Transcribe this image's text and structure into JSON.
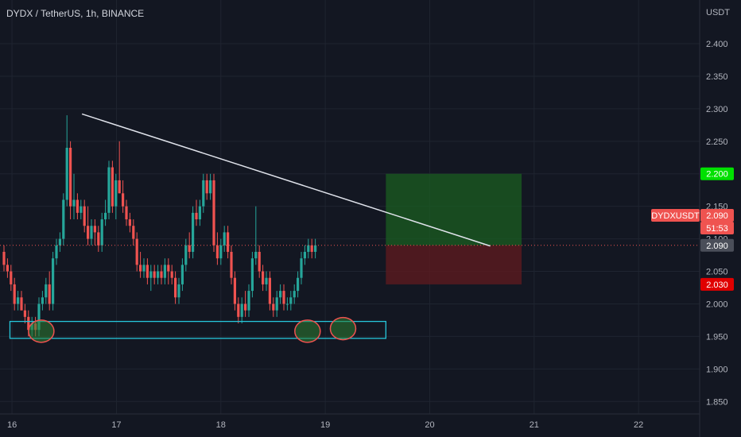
{
  "header": {
    "title": "DYDX / TetherUS, 1h, BINANCE"
  },
  "price_axis": {
    "unit": "USDT"
  },
  "tags": {
    "symbol": "DYDXUSDT",
    "symbol_price": "2.090",
    "countdown": "51:53",
    "last_price": "2.090",
    "target": "2.200",
    "stop": "2.030"
  },
  "colors": {
    "background": "#131722",
    "up": "#26a69a",
    "down": "#ef5350",
    "trendline": "#e0e3eb",
    "support_box": "#26c6da",
    "target_zone": "#1b5e20",
    "stop_zone": "#5d1a1f",
    "target_tag": "#00e000",
    "stop_tag": "#e00000",
    "symbol_tag": "#ef5350"
  },
  "chart_data": {
    "type": "candlestick",
    "title": "DYDX / TetherUS, 1h, BINANCE",
    "ylabel": "USDT",
    "ylim": [
      1.81,
      2.455
    ],
    "y_ticks": [
      "2.400",
      "2.350",
      "2.300",
      "2.250",
      "2.200",
      "2.150",
      "2.100",
      "2.050",
      "2.000",
      "1.950",
      "1.900",
      "1.850"
    ],
    "x_ticks": [
      "16",
      "17",
      "18",
      "19",
      "20",
      "21",
      "22"
    ],
    "x_tick_values": [
      16,
      17,
      18,
      19,
      20,
      21,
      22
    ],
    "xlim": [
      15.885,
      22.585
    ],
    "last_price": 2.09,
    "candles": [
      [
        2.08,
        2.09,
        2.05,
        2.06
      ],
      [
        2.06,
        2.07,
        2.04,
        2.05
      ],
      [
        2.05,
        2.06,
        2.02,
        2.03
      ],
      [
        2.03,
        2.04,
        1.99,
        2.0
      ],
      [
        2.0,
        2.02,
        1.99,
        2.01
      ],
      [
        2.01,
        2.02,
        1.99,
        1.99
      ],
      [
        1.99,
        2.0,
        1.97,
        1.98
      ],
      [
        1.98,
        1.99,
        1.95,
        1.96
      ],
      [
        1.96,
        1.98,
        1.95,
        1.97
      ],
      [
        1.97,
        1.98,
        1.95,
        1.96
      ],
      [
        1.96,
        2.01,
        1.95,
        2.0
      ],
      [
        2.0,
        2.02,
        1.99,
        2.01
      ],
      [
        2.01,
        2.04,
        2.0,
        2.03
      ],
      [
        2.03,
        2.05,
        1.99,
        2.0
      ],
      [
        2.0,
        2.08,
        1.99,
        2.07
      ],
      [
        2.07,
        2.1,
        2.06,
        2.09
      ],
      [
        2.09,
        2.11,
        2.08,
        2.1
      ],
      [
        2.1,
        2.17,
        2.09,
        2.16
      ],
      [
        2.16,
        2.29,
        2.15,
        2.24
      ],
      [
        2.24,
        2.25,
        2.13,
        2.15
      ],
      [
        2.15,
        2.2,
        2.13,
        2.16
      ],
      [
        2.16,
        2.17,
        2.13,
        2.14
      ],
      [
        2.14,
        2.16,
        2.13,
        2.15
      ],
      [
        2.15,
        2.16,
        2.11,
        2.12
      ],
      [
        2.12,
        2.15,
        2.09,
        2.1
      ],
      [
        2.1,
        2.13,
        2.09,
        2.12
      ],
      [
        2.12,
        2.13,
        2.09,
        2.11
      ],
      [
        2.11,
        2.12,
        2.08,
        2.09
      ],
      [
        2.09,
        2.14,
        2.08,
        2.13
      ],
      [
        2.13,
        2.16,
        2.12,
        2.14
      ],
      [
        2.14,
        2.22,
        2.13,
        2.21
      ],
      [
        2.21,
        2.22,
        2.14,
        2.15
      ],
      [
        2.15,
        2.2,
        2.13,
        2.19
      ],
      [
        2.19,
        2.25,
        2.17,
        2.17
      ],
      [
        2.17,
        2.19,
        2.14,
        2.15
      ],
      [
        2.15,
        2.16,
        2.12,
        2.13
      ],
      [
        2.13,
        2.14,
        2.11,
        2.12
      ],
      [
        2.12,
        2.13,
        2.09,
        2.1
      ],
      [
        2.1,
        2.11,
        2.05,
        2.06
      ],
      [
        2.06,
        2.08,
        2.04,
        2.05
      ],
      [
        2.05,
        2.07,
        2.04,
        2.06
      ],
      [
        2.06,
        2.07,
        2.03,
        2.04
      ],
      [
        2.04,
        2.06,
        2.02,
        2.05
      ],
      [
        2.05,
        2.06,
        2.03,
        2.04
      ],
      [
        2.04,
        2.06,
        2.03,
        2.05
      ],
      [
        2.05,
        2.06,
        2.03,
        2.04
      ],
      [
        2.04,
        2.07,
        2.03,
        2.06
      ],
      [
        2.06,
        2.07,
        2.03,
        2.05
      ],
      [
        2.05,
        2.06,
        2.03,
        2.04
      ],
      [
        2.04,
        2.05,
        2.0,
        2.01
      ],
      [
        2.01,
        2.04,
        2.0,
        2.03
      ],
      [
        2.03,
        2.07,
        2.02,
        2.06
      ],
      [
        2.06,
        2.1,
        2.05,
        2.09
      ],
      [
        2.09,
        2.11,
        2.07,
        2.08
      ],
      [
        2.08,
        2.15,
        2.07,
        2.14
      ],
      [
        2.14,
        2.16,
        2.12,
        2.13
      ],
      [
        2.13,
        2.16,
        2.12,
        2.15
      ],
      [
        2.15,
        2.2,
        2.14,
        2.19
      ],
      [
        2.19,
        2.2,
        2.16,
        2.17
      ],
      [
        2.17,
        2.2,
        2.16,
        2.19
      ],
      [
        2.19,
        2.2,
        2.08,
        2.09
      ],
      [
        2.09,
        2.11,
        2.06,
        2.07
      ],
      [
        2.07,
        2.1,
        2.06,
        2.09
      ],
      [
        2.09,
        2.12,
        2.08,
        2.11
      ],
      [
        2.11,
        2.12,
        2.07,
        2.08
      ],
      [
        2.08,
        2.09,
        2.03,
        2.04
      ],
      [
        2.04,
        2.05,
        1.99,
        2.0
      ],
      [
        2.0,
        2.01,
        1.97,
        1.98
      ],
      [
        1.98,
        2.01,
        1.97,
        2.0
      ],
      [
        2.0,
        2.02,
        1.98,
        1.99
      ],
      [
        1.99,
        2.03,
        1.98,
        2.02
      ],
      [
        2.02,
        2.08,
        2.01,
        2.07
      ],
      [
        2.07,
        2.15,
        2.06,
        2.08
      ],
      [
        2.08,
        2.09,
        2.04,
        2.05
      ],
      [
        2.05,
        2.06,
        2.02,
        2.03
      ],
      [
        2.03,
        2.05,
        2.02,
        2.04
      ],
      [
        2.04,
        2.05,
        1.99,
        2.0
      ],
      [
        2.0,
        2.01,
        1.98,
        1.99
      ],
      [
        1.99,
        2.02,
        1.98,
        2.01
      ],
      [
        2.01,
        2.03,
        2.0,
        2.02
      ],
      [
        2.02,
        2.03,
        1.99,
        2.0
      ],
      [
        2.0,
        2.01,
        1.99,
        2.0
      ],
      [
        2.0,
        2.02,
        1.99,
        2.01
      ],
      [
        2.01,
        2.03,
        2.0,
        2.02
      ],
      [
        2.02,
        2.05,
        2.01,
        2.04
      ],
      [
        2.04,
        2.08,
        2.03,
        2.07
      ],
      [
        2.07,
        2.09,
        2.06,
        2.08
      ],
      [
        2.08,
        2.1,
        2.07,
        2.09
      ],
      [
        2.09,
        2.1,
        2.07,
        2.08
      ],
      [
        2.08,
        2.1,
        2.07,
        2.09
      ]
    ],
    "trendline": [
      [
        16.67,
        2.292
      ],
      [
        20.58,
        2.089
      ]
    ],
    "support_zone": {
      "x": [
        15.98,
        19.58
      ],
      "y": [
        1.947,
        1.973
      ]
    },
    "highlights": [
      {
        "x": 16.28,
        "y": 1.958
      },
      {
        "x": 18.83,
        "y": 1.958
      },
      {
        "x": 19.17,
        "y": 1.962
      }
    ],
    "position": {
      "x": [
        19.58,
        20.88
      ],
      "entry": 2.09,
      "target": 2.2,
      "stop": 2.03
    }
  }
}
